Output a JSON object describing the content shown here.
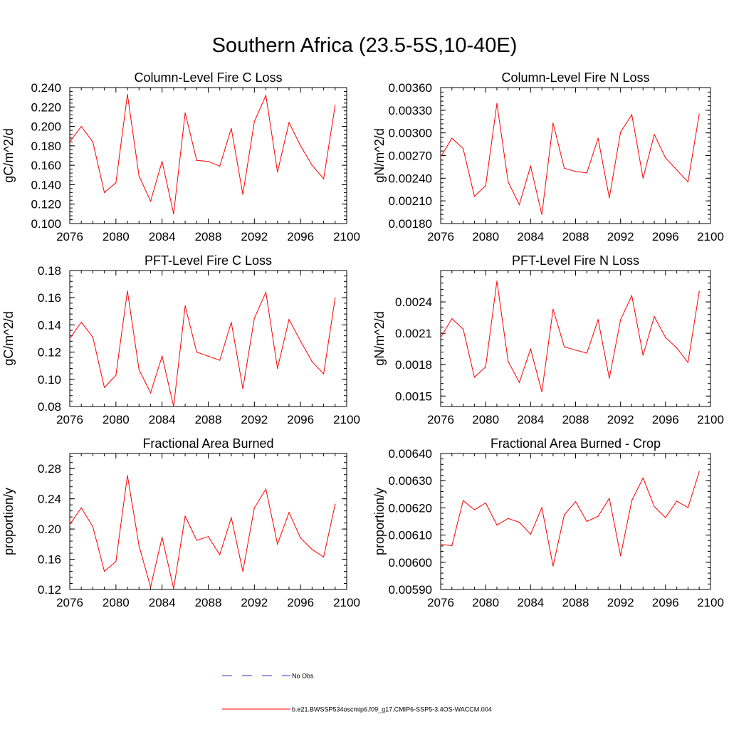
{
  "page": {
    "title": "Southern Africa (23.5-5S,10-40E)"
  },
  "legend": {
    "obs_label": "No Obs",
    "model_label": "b.e21.BWSSP534oscmip6.f09_g17.CMIP6-SSP5-3.4OS-WACCM.004",
    "obs_color": "#3333cc",
    "model_color": "#ff0000"
  },
  "chart_data": [
    {
      "type": "line",
      "title": "Column-Level Fire C Loss",
      "ylabel": "gC/m^2/d",
      "xlim": [
        2076,
        2100
      ],
      "ylim": [
        0.1,
        0.24
      ],
      "x_ticks": [
        2076,
        2080,
        2084,
        2088,
        2092,
        2096,
        2100
      ],
      "y_ticks": [
        0.1,
        0.12,
        0.14,
        0.16,
        0.18,
        0.2,
        0.22,
        0.24
      ],
      "y_tick_labels": [
        "0.100",
        "0.120",
        "0.140",
        "0.160",
        "0.180",
        "0.200",
        "0.220",
        "0.240"
      ],
      "x": [
        2076,
        2077,
        2078,
        2079,
        2080,
        2081,
        2082,
        2083,
        2084,
        2085,
        2086,
        2087,
        2088,
        2089,
        2090,
        2091,
        2092,
        2093,
        2094,
        2095,
        2096,
        2097,
        2098,
        2099
      ],
      "values": [
        0.184,
        0.2,
        0.184,
        0.132,
        0.142,
        0.233,
        0.149,
        0.123,
        0.164,
        0.11,
        0.214,
        0.165,
        0.164,
        0.159,
        0.198,
        0.13,
        0.205,
        0.232,
        0.153,
        0.204,
        0.18,
        0.16,
        0.146,
        0.222
      ]
    },
    {
      "type": "line",
      "title": "Column-Level Fire N Loss",
      "ylabel": "gN/m^2/d",
      "xlim": [
        2076,
        2100
      ],
      "ylim": [
        0.0018,
        0.0036
      ],
      "x_ticks": [
        2076,
        2080,
        2084,
        2088,
        2092,
        2096,
        2100
      ],
      "y_ticks": [
        0.0018,
        0.0021,
        0.0024,
        0.0027,
        0.003,
        0.0033,
        0.0036
      ],
      "y_tick_labels": [
        "0.00180",
        "0.00210",
        "0.00240",
        "0.00270",
        "0.00300",
        "0.00330",
        "0.00360"
      ],
      "x": [
        2076,
        2077,
        2078,
        2079,
        2080,
        2081,
        2082,
        2083,
        2084,
        2085,
        2086,
        2087,
        2088,
        2089,
        2090,
        2091,
        2092,
        2093,
        2094,
        2095,
        2096,
        2097,
        2098,
        2099
      ],
      "values": [
        0.00268,
        0.00293,
        0.00279,
        0.00216,
        0.0023,
        0.00339,
        0.00235,
        0.00205,
        0.00256,
        0.00192,
        0.00313,
        0.00253,
        0.00249,
        0.00247,
        0.00293,
        0.00214,
        0.00301,
        0.00324,
        0.0024,
        0.00298,
        0.00267,
        0.00251,
        0.00235,
        0.00325
      ]
    },
    {
      "type": "line",
      "title": "PFT-Level Fire C Loss",
      "ylabel": "gC/m^2/d",
      "xlim": [
        2076,
        2100
      ],
      "ylim": [
        0.08,
        0.18
      ],
      "x_ticks": [
        2076,
        2080,
        2084,
        2088,
        2092,
        2096,
        2100
      ],
      "y_ticks": [
        0.08,
        0.1,
        0.12,
        0.14,
        0.16,
        0.18
      ],
      "y_tick_labels": [
        "0.08",
        "0.10",
        "0.12",
        "0.14",
        "0.16",
        "0.18"
      ],
      "x": [
        2076,
        2077,
        2078,
        2079,
        2080,
        2081,
        2082,
        2083,
        2084,
        2085,
        2086,
        2087,
        2088,
        2089,
        2090,
        2091,
        2092,
        2093,
        2094,
        2095,
        2096,
        2097,
        2098,
        2099
      ],
      "values": [
        0.13,
        0.142,
        0.131,
        0.094,
        0.103,
        0.165,
        0.107,
        0.09,
        0.117,
        0.08,
        0.154,
        0.12,
        0.117,
        0.114,
        0.142,
        0.093,
        0.145,
        0.164,
        0.108,
        0.144,
        0.128,
        0.113,
        0.104,
        0.16
      ]
    },
    {
      "type": "line",
      "title": "PFT-Level Fire N Loss",
      "ylabel": "gN/m^2/d",
      "xlim": [
        2076,
        2100
      ],
      "ylim": [
        0.0014,
        0.0027
      ],
      "x_ticks": [
        2076,
        2080,
        2084,
        2088,
        2092,
        2096,
        2100
      ],
      "y_ticks": [
        0.0015,
        0.0018,
        0.0021,
        0.0024
      ],
      "y_tick_labels": [
        "0.0015",
        "0.0018",
        "0.0021",
        "0.0024"
      ],
      "x": [
        2076,
        2077,
        2078,
        2079,
        2080,
        2081,
        2082,
        2083,
        2084,
        2085,
        2086,
        2087,
        2088,
        2089,
        2090,
        2091,
        2092,
        2093,
        2094,
        2095,
        2096,
        2097,
        2098,
        2099
      ],
      "values": [
        0.00206,
        0.00224,
        0.00214,
        0.00168,
        0.00178,
        0.0026,
        0.00183,
        0.00163,
        0.00195,
        0.00154,
        0.00233,
        0.00197,
        0.00194,
        0.00191,
        0.00223,
        0.00167,
        0.00223,
        0.00246,
        0.00189,
        0.00226,
        0.00206,
        0.00196,
        0.00182,
        0.0025
      ]
    },
    {
      "type": "line",
      "title": "Fractional Area Burned",
      "ylabel": "proportion/y",
      "xlim": [
        2076,
        2100
      ],
      "ylim": [
        0.12,
        0.3
      ],
      "x_ticks": [
        2076,
        2080,
        2084,
        2088,
        2092,
        2096,
        2100
      ],
      "y_ticks": [
        0.12,
        0.16,
        0.2,
        0.24,
        0.28
      ],
      "y_tick_labels": [
        "0.12",
        "0.16",
        "0.20",
        "0.24",
        "0.28"
      ],
      "x": [
        2076,
        2077,
        2078,
        2079,
        2080,
        2081,
        2082,
        2083,
        2084,
        2085,
        2086,
        2087,
        2088,
        2089,
        2090,
        2091,
        2092,
        2093,
        2094,
        2095,
        2096,
        2097,
        2098,
        2099
      ],
      "values": [
        0.206,
        0.228,
        0.203,
        0.144,
        0.157,
        0.271,
        0.178,
        0.123,
        0.189,
        0.121,
        0.217,
        0.185,
        0.19,
        0.166,
        0.215,
        0.144,
        0.228,
        0.253,
        0.18,
        0.222,
        0.188,
        0.173,
        0.163,
        0.233
      ]
    },
    {
      "type": "line",
      "title": "Fractional Area Burned - Crop",
      "ylabel": "proportion/y",
      "xlim": [
        2076,
        2100
      ],
      "ylim": [
        0.0059,
        0.0064
      ],
      "x_ticks": [
        2076,
        2080,
        2084,
        2088,
        2092,
        2096,
        2100
      ],
      "y_ticks": [
        0.0059,
        0.006,
        0.0061,
        0.0062,
        0.0063,
        0.0064
      ],
      "y_tick_labels": [
        "0.00590",
        "0.00600",
        "0.00610",
        "0.00620",
        "0.00630",
        "0.00640"
      ],
      "x": [
        2076,
        2077,
        2078,
        2079,
        2080,
        2081,
        2082,
        2083,
        2084,
        2085,
        2086,
        2087,
        2088,
        2089,
        2090,
        2091,
        2092,
        2093,
        2094,
        2095,
        2096,
        2097,
        2098,
        2099
      ],
      "values": [
        0.006066,
        0.006061,
        0.006227,
        0.006193,
        0.006218,
        0.006137,
        0.006161,
        0.006147,
        0.006103,
        0.006201,
        0.005986,
        0.006175,
        0.006223,
        0.00615,
        0.006169,
        0.006235,
        0.006024,
        0.006227,
        0.00631,
        0.006205,
        0.006164,
        0.006225,
        0.006201,
        0.006333
      ]
    }
  ]
}
